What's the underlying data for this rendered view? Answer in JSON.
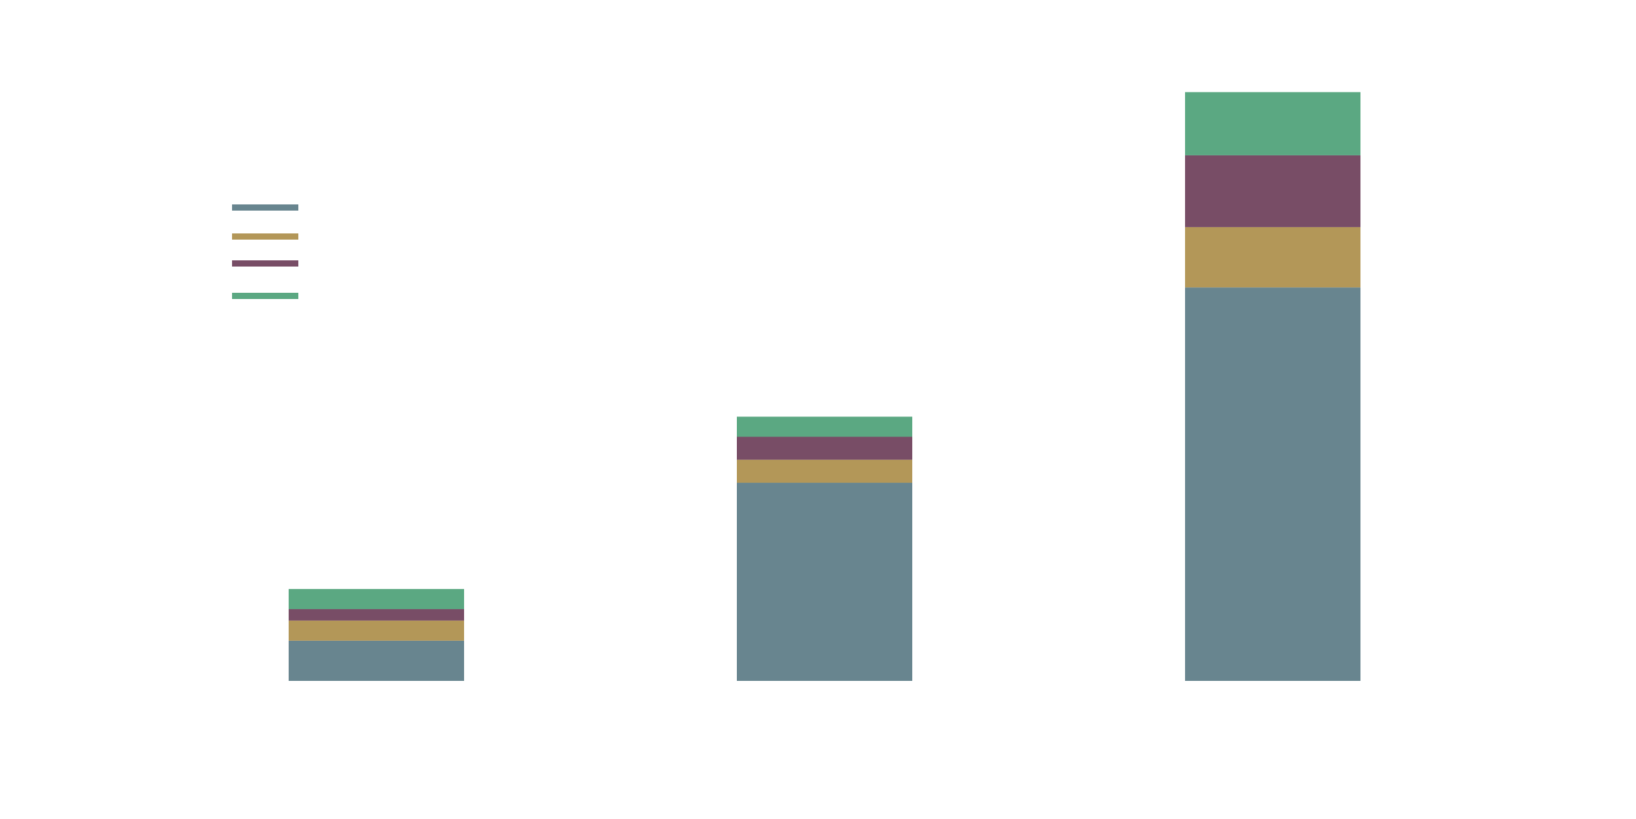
{
  "chart_data": {
    "type": "bar",
    "stacked": true,
    "categories": [
      "",
      "",
      ""
    ],
    "series": [
      {
        "values": [
          0.7,
          3.45,
          6.85
        ],
        "color": "#68858f"
      },
      {
        "values": [
          0.35,
          0.4,
          1.05
        ],
        "color": "#b39758"
      },
      {
        "values": [
          0.2,
          0.4,
          1.25
        ],
        "color": "#784d66"
      },
      {
        "values": [
          0.35,
          0.35,
          1.1
        ],
        "color": "#5ba882"
      }
    ],
    "ylim": [
      0,
      10.7
    ],
    "grid": false,
    "legend": {
      "position": "top-left",
      "labels": [
        "",
        "",
        "",
        ""
      ]
    },
    "title": "",
    "xlabel": "",
    "ylabel": ""
  }
}
